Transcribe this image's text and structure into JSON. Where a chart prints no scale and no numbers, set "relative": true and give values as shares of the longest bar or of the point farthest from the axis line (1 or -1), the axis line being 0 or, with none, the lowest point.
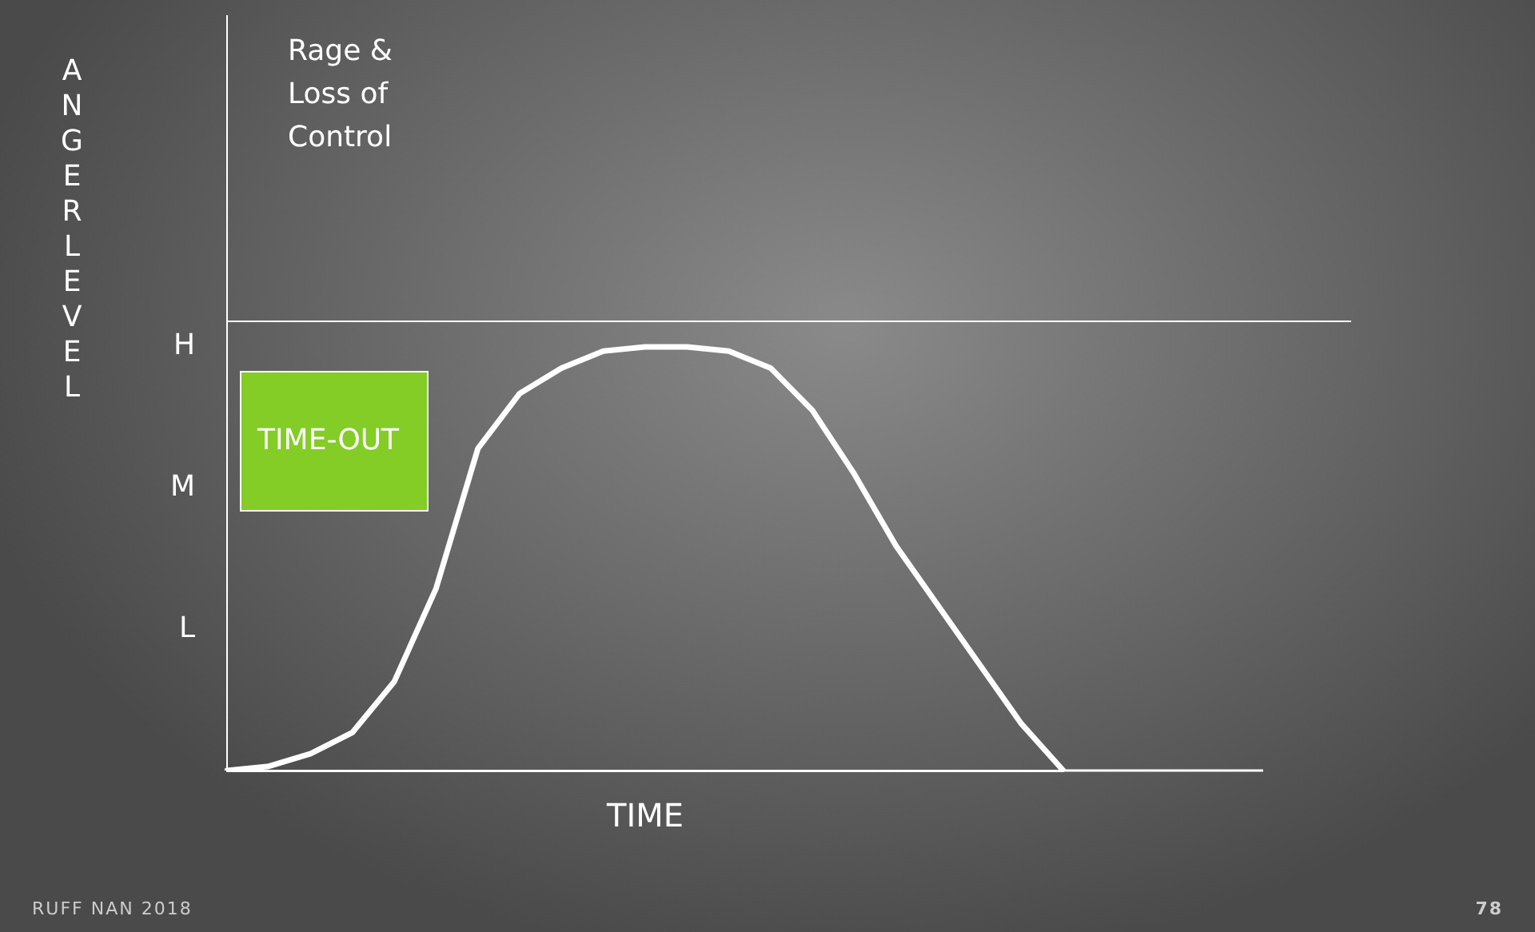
{
  "chart_data": {
    "type": "line",
    "xlabel": "TIME",
    "ylabel": "ANGER LEVEL",
    "categories": [
      null,
      null,
      null,
      null,
      null,
      null,
      null,
      null,
      null,
      null,
      null,
      null,
      null,
      null,
      null,
      null,
      null,
      null,
      null,
      null,
      null
    ],
    "series": [
      {
        "color": "#ffffff",
        "values": [
          0,
          0.01,
          0.04,
          0.09,
          0.21,
          0.43,
          0.76,
          0.89,
          0.95,
          0.99,
          1,
          1,
          0.99,
          0.95,
          0.85,
          0.7,
          0.53,
          0.39,
          0.25,
          0.11,
          0
        ]
      }
    ],
    "relative": true,
    "tick_labels": false,
    "grid": false,
    "legend": false,
    "marker": "none",
    "line_style": "solid",
    "ref_lines": [
      {
        "axis": "y",
        "value": 1.06,
        "label": "Rage & Loss of Control",
        "color": "#ffffff"
      }
    ],
    "annotations": [
      "RUFF NAN 2018",
      "78",
      "TIME-OUT",
      "L",
      "M",
      "H"
    ]
  }
}
